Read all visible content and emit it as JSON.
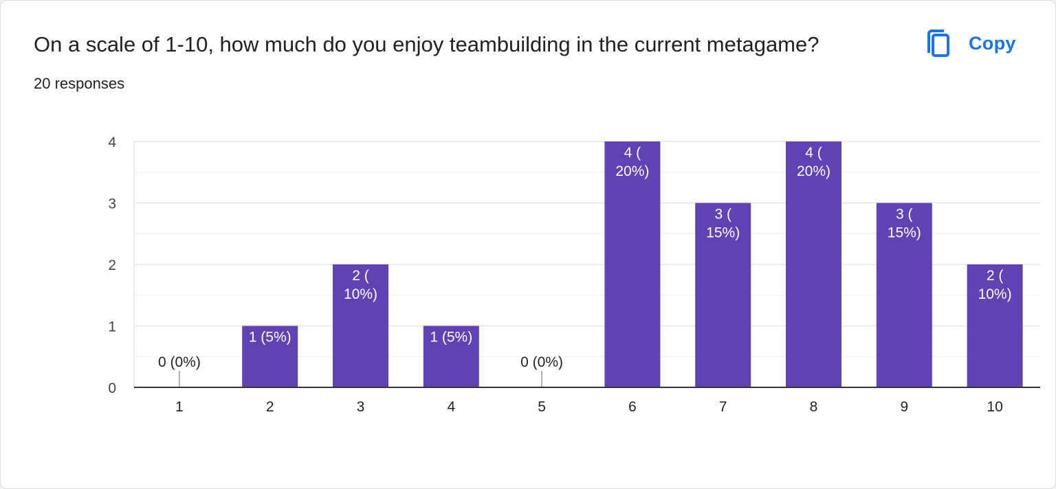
{
  "question": {
    "title": "On a scale of 1-10, how much do you enjoy teambuilding in the current metagame?",
    "responses_label": "20 responses"
  },
  "copy_button": {
    "label": "Copy",
    "icon": "copy-icon",
    "color": "#1a73e8"
  },
  "colors": {
    "bar": "#5f43b2",
    "bar_label": "#ffffff",
    "outside_label": "#202124",
    "grid": "#ebebeb",
    "axis": "#333333"
  },
  "chart_data": {
    "type": "bar",
    "categories": [
      "1",
      "2",
      "3",
      "4",
      "5",
      "6",
      "7",
      "8",
      "9",
      "10"
    ],
    "values": [
      0,
      1,
      2,
      1,
      0,
      4,
      3,
      4,
      3,
      2
    ],
    "data_labels": [
      [
        "0 (0%)"
      ],
      [
        "1 (5%)"
      ],
      [
        "2 (",
        "10%)"
      ],
      [
        "1 (5%)"
      ],
      [
        "0 (0%)"
      ],
      [
        "4 (",
        "20%)"
      ],
      [
        "3 (",
        "15%)"
      ],
      [
        "4 (",
        "20%)"
      ],
      [
        "3 (",
        "15%)"
      ],
      [
        "2 (",
        "10%)"
      ]
    ],
    "y_ticks": [
      0,
      1,
      2,
      3,
      4
    ],
    "ylim": [
      0,
      4
    ],
    "grid": true,
    "legend": "none",
    "title": "",
    "xlabel": "",
    "ylabel": ""
  }
}
